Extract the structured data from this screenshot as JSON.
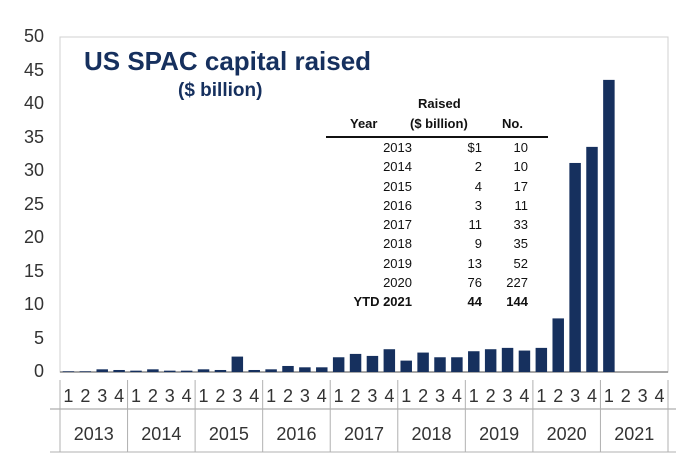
{
  "chart_data": {
    "type": "bar",
    "title": "US SPAC capital raised",
    "subtitle": "($ billion)",
    "ylim": [
      0,
      50
    ],
    "yticks": [
      0,
      5,
      10,
      15,
      20,
      25,
      30,
      35,
      40,
      45,
      50
    ],
    "grid": false,
    "bar_color": "#16305e",
    "years": [
      "2013",
      "2014",
      "2015",
      "2016",
      "2017",
      "2018",
      "2019",
      "2020",
      "2021"
    ],
    "categories": [
      "2013 Q1",
      "2013 Q2",
      "2013 Q3",
      "2013 Q4",
      "2014 Q1",
      "2014 Q2",
      "2014 Q3",
      "2014 Q4",
      "2015 Q1",
      "2015 Q2",
      "2015 Q3",
      "2015 Q4",
      "2016 Q1",
      "2016 Q2",
      "2016 Q3",
      "2016 Q4",
      "2017 Q1",
      "2017 Q2",
      "2017 Q3",
      "2017 Q4",
      "2018 Q1",
      "2018 Q2",
      "2018 Q3",
      "2018 Q4",
      "2019 Q1",
      "2019 Q2",
      "2019 Q3",
      "2019 Q4",
      "2020 Q1",
      "2020 Q2",
      "2020 Q3",
      "2020 Q4",
      "2021 Q1",
      "2021 Q2",
      "2021 Q3",
      "2021 Q4"
    ],
    "quarter_labels": [
      "1",
      "2",
      "3",
      "4",
      "1",
      "2",
      "3",
      "4",
      "1",
      "2",
      "3",
      "4",
      "1",
      "2",
      "3",
      "4",
      "1",
      "2",
      "3",
      "4",
      "1",
      "2",
      "3",
      "4",
      "1",
      "2",
      "3",
      "4",
      "1",
      "2",
      "3",
      "4",
      "1",
      "2",
      "3",
      "4"
    ],
    "values": [
      0.1,
      0.1,
      0.4,
      0.3,
      0.2,
      0.4,
      0.2,
      0.2,
      0.4,
      0.3,
      2.3,
      0.3,
      0.4,
      0.9,
      0.7,
      0.7,
      2.2,
      2.7,
      2.4,
      3.4,
      1.7,
      2.9,
      2.2,
      2.2,
      3.1,
      3.4,
      3.6,
      3.2,
      3.6,
      8.0,
      31.2,
      33.6,
      43.6,
      0,
      0,
      0
    ],
    "table": {
      "headers": {
        "year": "Year",
        "raised_line1": "Raised",
        "raised_line2": "($ billion)",
        "no": "No."
      },
      "rows": [
        {
          "year": "2013",
          "raised": "$1",
          "no": "10"
        },
        {
          "year": "2014",
          "raised": "2",
          "no": "10"
        },
        {
          "year": "2015",
          "raised": "4",
          "no": "17"
        },
        {
          "year": "2016",
          "raised": "3",
          "no": "11"
        },
        {
          "year": "2017",
          "raised": "11",
          "no": "33"
        },
        {
          "year": "2018",
          "raised": "9",
          "no": "35"
        },
        {
          "year": "2019",
          "raised": "13",
          "no": "52"
        },
        {
          "year": "2020",
          "raised": "76",
          "no": "227"
        },
        {
          "year": "YTD 2021",
          "raised": "44",
          "no": "144",
          "bold": true
        }
      ]
    }
  }
}
